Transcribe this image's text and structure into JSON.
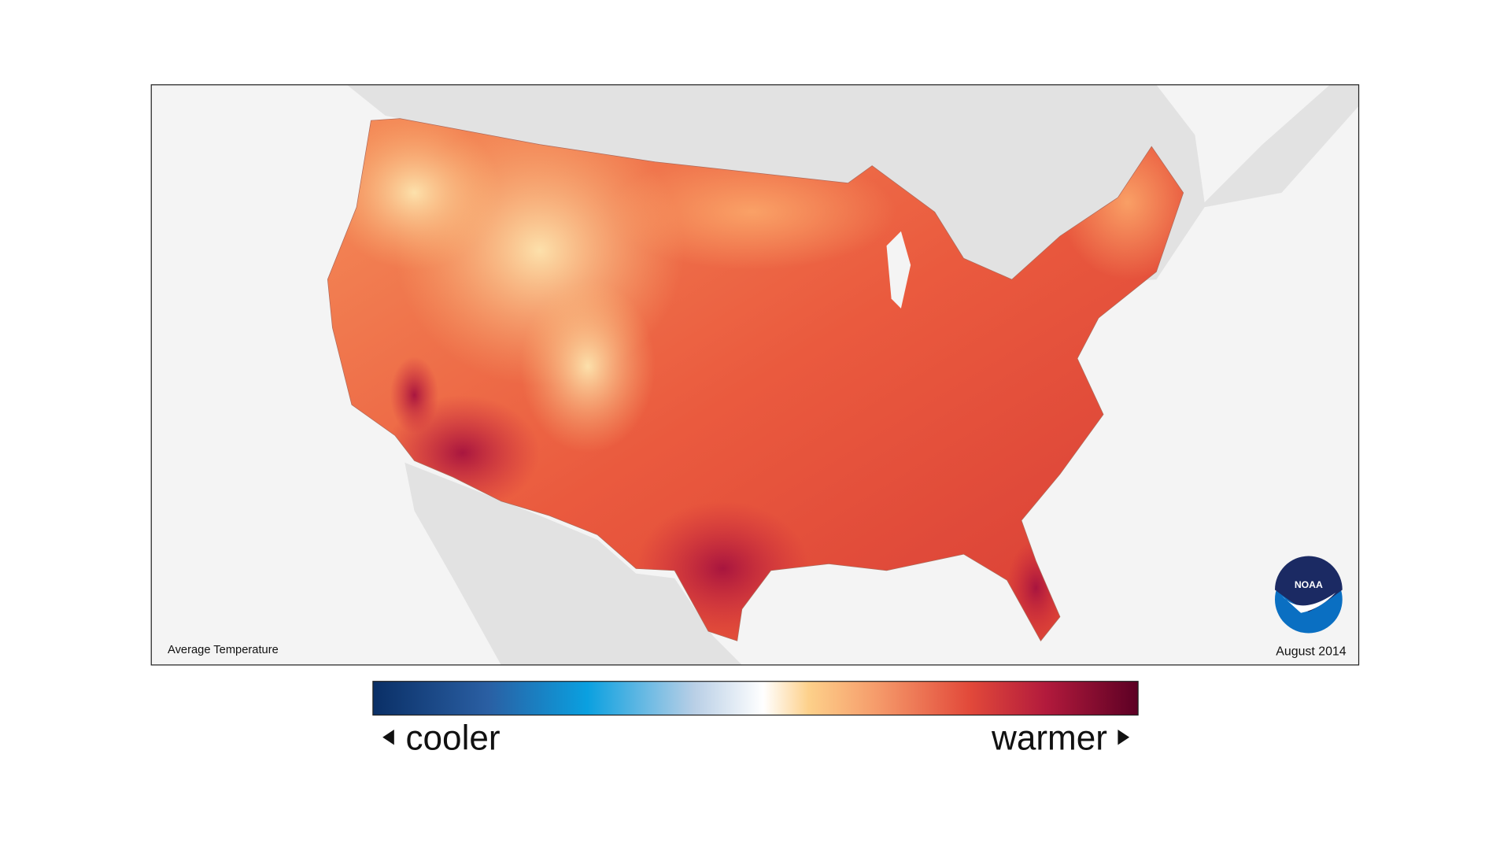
{
  "map": {
    "title": "Average Temperature",
    "date": "August 2014",
    "logo": "NOAA"
  },
  "legend": {
    "low": "cooler",
    "high": "warmer"
  }
}
